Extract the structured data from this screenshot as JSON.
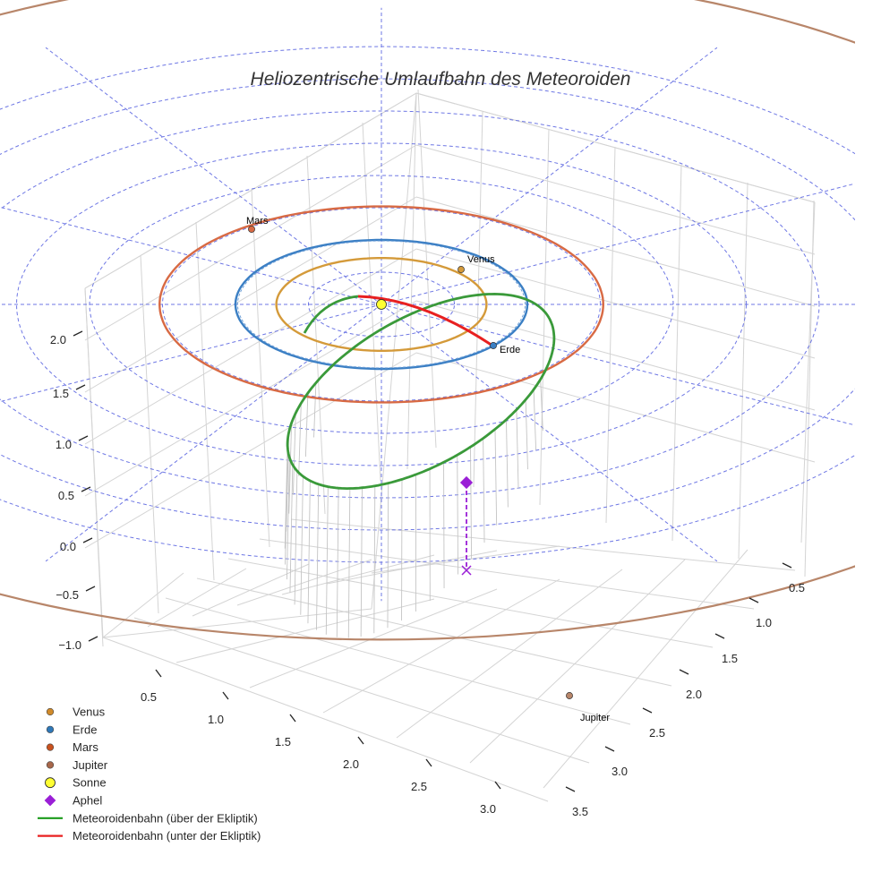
{
  "chart_data": {
    "type": "3d-line",
    "title": "Heliozentrische Umlaufbahn des Meteoroiden",
    "z_ticks": [
      "−1.0",
      "−0.5",
      "0.0",
      "0.5",
      "1.0",
      "1.5",
      "2.0"
    ],
    "x_ticks": [
      "0.5",
      "1.0",
      "1.5",
      "2.0",
      "2.5",
      "3.0"
    ],
    "y_ticks": [
      "0.5",
      "1.0",
      "1.5",
      "2.0",
      "2.5",
      "3.0",
      "3.5"
    ],
    "planets": [
      {
        "name": "Venus",
        "label": "Venus",
        "radius_au": 0.72,
        "color": "#d49a3a"
      },
      {
        "name": "Erde",
        "label": "Erde",
        "radius_au": 1.0,
        "color": "#3b7fc4"
      },
      {
        "name": "Mars",
        "label": "Mars",
        "radius_au": 1.52,
        "color": "#d86a44"
      },
      {
        "name": "Jupiter",
        "label": "Jupiter",
        "radius_au": 5.2,
        "color": "#b8866a"
      }
    ],
    "sun": {
      "name": "Sonne",
      "color": "#ffff33"
    },
    "aphel": {
      "name": "Aphel",
      "color": "#9a1fd6"
    },
    "orbit_series": [
      {
        "name": "Meteoroidenbahn (über der Ekliptik)",
        "color": "#3a9a3a"
      },
      {
        "name": "Meteoroidenbahn (unter der Ekliptik)",
        "color": "#e82020"
      }
    ],
    "grid": true,
    "legend_position": "bottom-left"
  },
  "legend": [
    {
      "label": "Venus",
      "marker": "dot",
      "color": "#d08a2a"
    },
    {
      "label": "Erde",
      "marker": "dot",
      "color": "#2f78b8"
    },
    {
      "label": "Mars",
      "marker": "dot",
      "color": "#c9521f"
    },
    {
      "label": "Jupiter",
      "marker": "dot",
      "color": "#a8674a"
    },
    {
      "label": "Sonne",
      "marker": "sun",
      "color": "#ffff33"
    },
    {
      "label": "Aphel",
      "marker": "diamond",
      "color": "#9a1fd6"
    },
    {
      "label": "Meteoroidenbahn (über der Ekliptik)",
      "marker": "line",
      "color": "#1a9a1a"
    },
    {
      "label": "Meteoroidenbahn (unter der Ekliptik)",
      "marker": "line",
      "color": "#e82020"
    }
  ]
}
